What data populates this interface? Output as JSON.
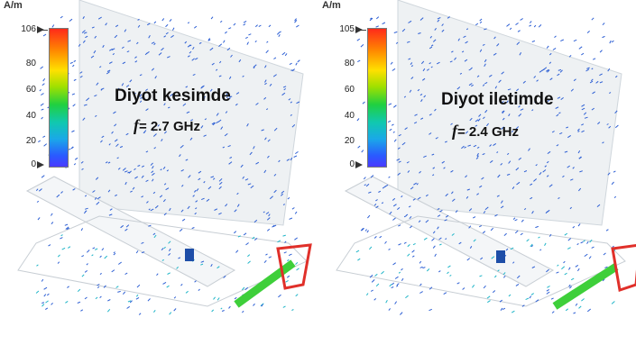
{
  "panels": [
    {
      "unit": "A/m",
      "scale_max_label": "106",
      "scale_ticks": [
        "80",
        "60",
        "40",
        "20",
        "0"
      ],
      "title": "Diyot kesimde",
      "freq_symbol": "f",
      "freq_value": "= 2.7 GHz"
    },
    {
      "unit": "A/m",
      "scale_max_label": "105",
      "scale_ticks": [
        "80",
        "60",
        "40",
        "20",
        "0"
      ],
      "title": "Diyot iletimde",
      "freq_symbol": "f",
      "freq_value": "= 2.4 GHz"
    }
  ],
  "colors": {
    "plate": "#eef1f3",
    "arrows": "#2d5fd4",
    "highlight_box": "#e0302a",
    "feed_line": "#3ecf3a"
  }
}
